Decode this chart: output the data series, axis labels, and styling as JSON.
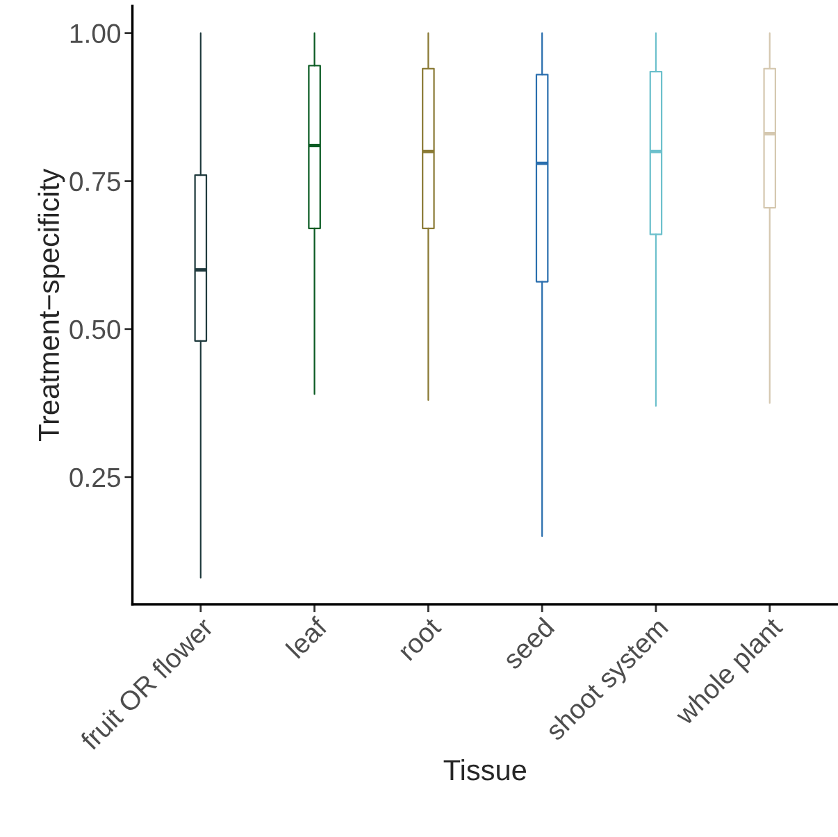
{
  "chart_data": {
    "type": "box",
    "xlabel": "Tissue",
    "ylabel": "Treatment−specificity",
    "categories": [
      "fruit OR flower",
      "leaf",
      "root",
      "seed",
      "shoot system",
      "whole plant"
    ],
    "colors": [
      "#1f3a3d",
      "#0b5b23",
      "#8a7a35",
      "#2b6fae",
      "#6cc0cc",
      "#d5c8b0"
    ],
    "boxes": [
      {
        "low": 0.08,
        "q1": 0.48,
        "median": 0.6,
        "q3": 0.76,
        "high": 1.0
      },
      {
        "low": 0.39,
        "q1": 0.67,
        "median": 0.81,
        "q3": 0.945,
        "high": 1.0
      },
      {
        "low": 0.38,
        "q1": 0.67,
        "median": 0.8,
        "q3": 0.94,
        "high": 1.0
      },
      {
        "low": 0.15,
        "q1": 0.58,
        "median": 0.78,
        "q3": 0.93,
        "high": 1.0
      },
      {
        "low": 0.37,
        "q1": 0.66,
        "median": 0.8,
        "q3": 0.935,
        "high": 1.0
      },
      {
        "low": 0.375,
        "q1": 0.705,
        "median": 0.83,
        "q3": 0.94,
        "high": 1.0
      }
    ],
    "ylim": [
      0.035,
      1.046
    ],
    "yticks": [
      {
        "value": 0.25,
        "label": "0.25"
      },
      {
        "value": 0.5,
        "label": "0.50"
      },
      {
        "value": 0.75,
        "label": "0.75"
      },
      {
        "value": 1.0,
        "label": "1.00"
      }
    ],
    "grid": false,
    "legend": false
  }
}
